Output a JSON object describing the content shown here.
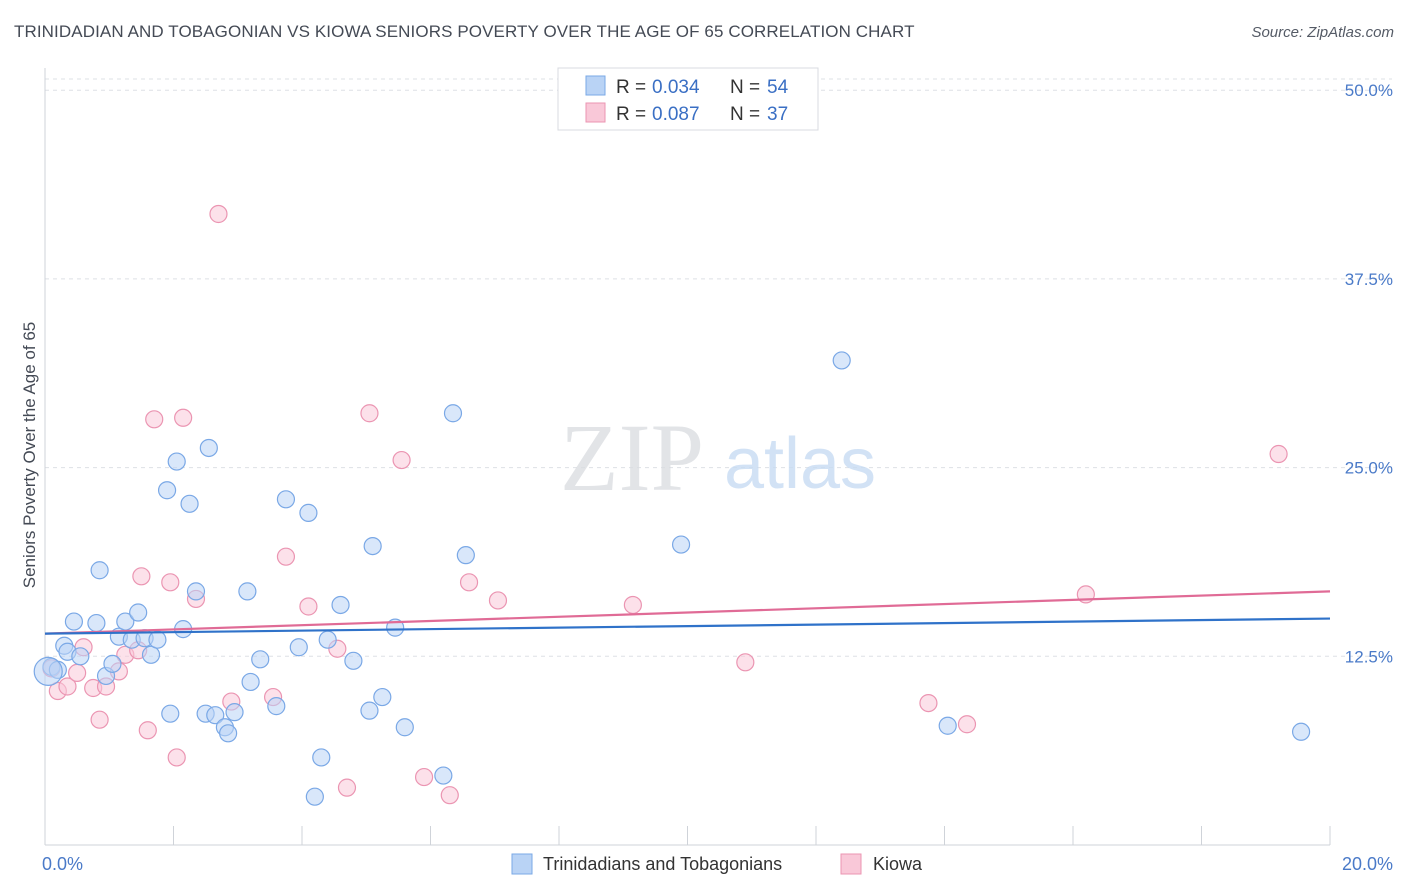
{
  "title": "TRINIDADIAN AND TOBAGONIAN VS KIOWA SENIORS POVERTY OVER THE AGE OF 65 CORRELATION CHART",
  "source": "Source: ZipAtlas.com",
  "watermark": {
    "zip": "ZIP",
    "atlas": "atlas"
  },
  "legend": {
    "rows": [
      {
        "r_label": "R =",
        "r_value": "0.034",
        "n_label": "N =",
        "n_value": "54"
      },
      {
        "r_label": "R =",
        "r_value": "0.087",
        "n_label": "N =",
        "n_value": "37"
      }
    ]
  },
  "chart_data": {
    "type": "scatter",
    "title": "TRINIDADIAN AND TOBAGONIAN VS KIOWA SENIORS POVERTY OVER THE AGE OF 65 CORRELATION CHART",
    "xlabel": "",
    "ylabel": "Seniors Poverty Over the Age of 65",
    "xlim": [
      0,
      20
    ],
    "ylim": [
      0,
      52
    ],
    "x_tick_labels": [
      {
        "value": 0,
        "label": "0.0%"
      },
      {
        "value": 20,
        "label": "20.0%"
      }
    ],
    "y_tick_labels": [
      {
        "value": 12.5,
        "label": "12.5%"
      },
      {
        "value": 25,
        "label": "25.0%"
      },
      {
        "value": 37.5,
        "label": "37.5%"
      },
      {
        "value": 50,
        "label": "50.0%"
      }
    ],
    "colors": {
      "blue_fill": "#b9d3f5",
      "blue_stroke": "#7aa8e6",
      "blue_line": "#2f72c9",
      "pink_fill": "#f9c8d8",
      "pink_stroke": "#eb95b2",
      "pink_line": "#e06b96"
    },
    "series": [
      {
        "name": "Trinidadians and Tobagonians",
        "color": "#7aa8e6",
        "trend": {
          "x": [
            0,
            20
          ],
          "y": [
            14.0,
            15.0
          ]
        },
        "points": [
          [
            0.1,
            11.8
          ],
          [
            0.2,
            11.6
          ],
          [
            0.3,
            13.2
          ],
          [
            0.35,
            12.8
          ],
          [
            0.45,
            14.8
          ],
          [
            0.55,
            12.5
          ],
          [
            0.8,
            14.7
          ],
          [
            0.85,
            18.2
          ],
          [
            0.95,
            11.2
          ],
          [
            1.05,
            12.0
          ],
          [
            1.15,
            13.8
          ],
          [
            1.25,
            14.8
          ],
          [
            1.35,
            13.6
          ],
          [
            1.45,
            15.4
          ],
          [
            1.55,
            13.7
          ],
          [
            1.65,
            12.6
          ],
          [
            1.75,
            13.6
          ],
          [
            1.9,
            23.5
          ],
          [
            1.95,
            8.7
          ],
          [
            2.05,
            25.4
          ],
          [
            2.15,
            14.3
          ],
          [
            2.25,
            22.6
          ],
          [
            2.35,
            16.8
          ],
          [
            2.5,
            8.7
          ],
          [
            2.55,
            26.3
          ],
          [
            2.65,
            8.6
          ],
          [
            2.8,
            7.8
          ],
          [
            2.85,
            7.4
          ],
          [
            2.95,
            8.8
          ],
          [
            3.15,
            16.8
          ],
          [
            3.2,
            10.8
          ],
          [
            3.35,
            12.3
          ],
          [
            3.6,
            9.2
          ],
          [
            3.75,
            22.9
          ],
          [
            3.95,
            13.1
          ],
          [
            4.1,
            22.0
          ],
          [
            4.2,
            3.2
          ],
          [
            4.3,
            5.8
          ],
          [
            4.4,
            13.6
          ],
          [
            4.6,
            15.9
          ],
          [
            4.8,
            12.2
          ],
          [
            5.05,
            8.9
          ],
          [
            5.1,
            19.8
          ],
          [
            5.25,
            9.8
          ],
          [
            5.45,
            14.4
          ],
          [
            5.6,
            7.8
          ],
          [
            6.2,
            4.6
          ],
          [
            6.35,
            28.6
          ],
          [
            6.55,
            19.2
          ],
          [
            9.9,
            19.9
          ],
          [
            12.4,
            32.1
          ],
          [
            14.05,
            7.9
          ],
          [
            19.55,
            7.5
          ],
          [
            0.05,
            11.5
          ]
        ]
      },
      {
        "name": "Kiowa",
        "color": "#eb95b2",
        "trend": {
          "x": [
            0,
            20
          ],
          "y": [
            14.0,
            16.8
          ]
        },
        "points": [
          [
            0.1,
            11.7
          ],
          [
            0.2,
            10.2
          ],
          [
            0.35,
            10.5
          ],
          [
            0.5,
            11.4
          ],
          [
            0.6,
            13.1
          ],
          [
            0.75,
            10.4
          ],
          [
            0.85,
            8.3
          ],
          [
            0.95,
            10.5
          ],
          [
            1.15,
            11.5
          ],
          [
            1.25,
            12.6
          ],
          [
            1.45,
            12.9
          ],
          [
            1.5,
            17.8
          ],
          [
            1.6,
            7.6
          ],
          [
            1.7,
            28.2
          ],
          [
            1.95,
            17.4
          ],
          [
            2.05,
            5.8
          ],
          [
            2.15,
            28.3
          ],
          [
            2.35,
            16.3
          ],
          [
            2.7,
            41.8
          ],
          [
            2.9,
            9.5
          ],
          [
            3.55,
            9.8
          ],
          [
            3.75,
            19.1
          ],
          [
            4.1,
            15.8
          ],
          [
            4.55,
            13.0
          ],
          [
            4.7,
            3.8
          ],
          [
            5.05,
            28.6
          ],
          [
            5.55,
            25.5
          ],
          [
            5.9,
            4.5
          ],
          [
            6.3,
            3.3
          ],
          [
            6.6,
            17.4
          ],
          [
            7.05,
            16.2
          ],
          [
            9.15,
            15.9
          ],
          [
            10.9,
            12.1
          ],
          [
            13.75,
            9.4
          ],
          [
            14.35,
            8.0
          ],
          [
            16.2,
            16.6
          ],
          [
            19.2,
            25.9
          ]
        ]
      }
    ]
  },
  "bottom_legend": [
    {
      "label": "Trinidadians and Tobagonians"
    },
    {
      "label": "Kiowa"
    }
  ]
}
